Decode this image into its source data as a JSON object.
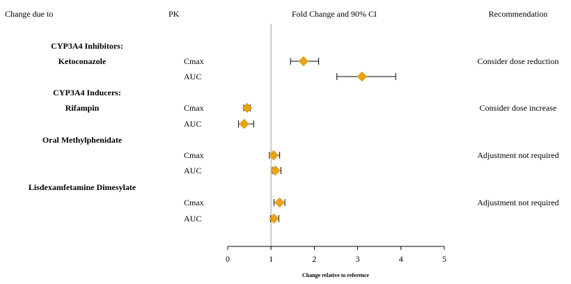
{
  "headers": {
    "col1": "Change due to",
    "col2": "PK",
    "col3": "Fold Change and 90% CI",
    "col4": "Recommendation"
  },
  "chart_data": {
    "type": "forest",
    "title": "",
    "xlabel": "Change relative to reference",
    "xlim": [
      0,
      5
    ],
    "xticks": [
      0,
      1,
      2,
      3,
      4,
      5
    ],
    "reference_line": 1,
    "marker_color": "#E8A317",
    "groups": [
      {
        "category": "CYP3A4 Inhibitors:",
        "name": "Ketoconazole",
        "recommendation": "Consider dose reduction",
        "rows": [
          {
            "pk": "Cmax",
            "estimate": 1.75,
            "lower": 1.45,
            "upper": 2.1
          },
          {
            "pk": "AUC",
            "estimate": 3.1,
            "lower": 2.52,
            "upper": 3.88
          }
        ]
      },
      {
        "category": "CYP3A4 Inducers:",
        "name": "Rifampin",
        "recommendation": "Consider dose increase",
        "rows": [
          {
            "pk": "Cmax",
            "estimate": 0.45,
            "lower": 0.37,
            "upper": 0.52
          },
          {
            "pk": "AUC",
            "estimate": 0.38,
            "lower": 0.25,
            "upper": 0.6
          }
        ]
      },
      {
        "category": "",
        "name": "Oral Methylphenidate",
        "recommendation": "Adjustment not required",
        "rows": [
          {
            "pk": "Cmax",
            "estimate": 1.06,
            "lower": 0.96,
            "upper": 1.2
          },
          {
            "pk": "AUC",
            "estimate": 1.1,
            "lower": 1.03,
            "upper": 1.23
          }
        ]
      },
      {
        "category": "",
        "name": "Lisdexamfetamine Dimesylate",
        "recommendation": "Adjustment not required",
        "rows": [
          {
            "pk": "Cmax",
            "estimate": 1.2,
            "lower": 1.07,
            "upper": 1.32
          },
          {
            "pk": "AUC",
            "estimate": 1.07,
            "lower": 0.99,
            "upper": 1.18
          }
        ]
      }
    ]
  }
}
